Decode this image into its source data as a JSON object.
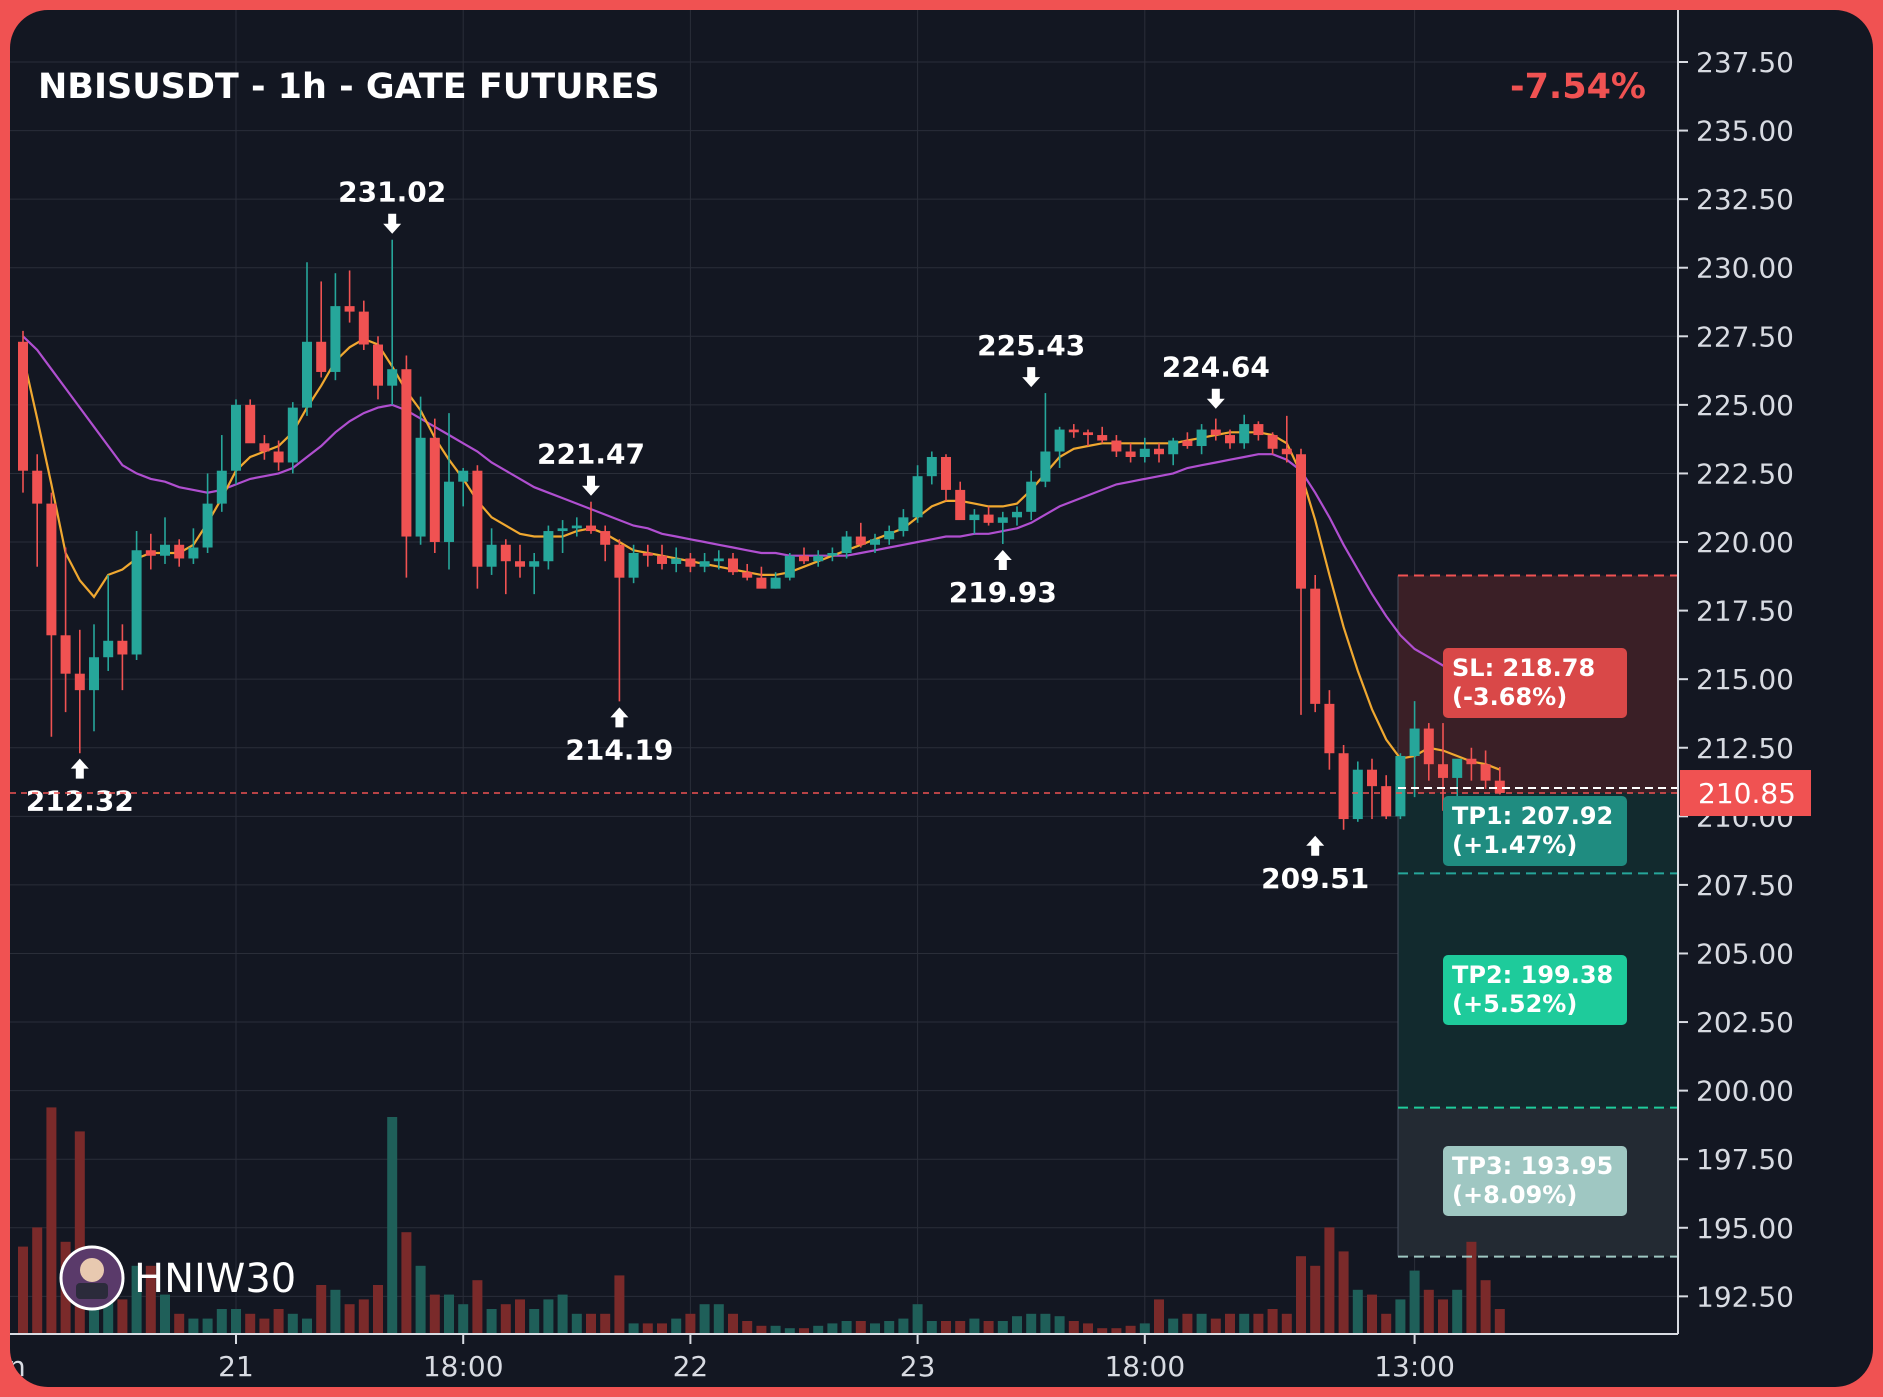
{
  "chart_data": {
    "type": "candlestick",
    "title": "NBISUSDT - 1h - GATE FUTURES",
    "change_pct": "-7.54%",
    "watermark": "HNIW30",
    "ylim": [
      191.5,
      238.5
    ],
    "y_ticks": [
      "237.50",
      "235.00",
      "232.50",
      "230.00",
      "227.50",
      "225.00",
      "222.50",
      "220.00",
      "217.50",
      "215.00",
      "212.50",
      "210.00",
      "207.50",
      "205.00",
      "202.50",
      "200.00",
      "197.50",
      "195.00",
      "192.50"
    ],
    "x_labels": [
      {
        "index": 15,
        "label": "21"
      },
      {
        "index": 31,
        "label": "18:00"
      },
      {
        "index": 47,
        "label": "22"
      },
      {
        "index": 63,
        "label": "23"
      },
      {
        "index": 79,
        "label": "18:00"
      },
      {
        "index": 98,
        "label": "13:00"
      }
    ],
    "first_x_label": "n",
    "current_price": 210.85,
    "current_price_label": "210.85",
    "candles": [
      [
        227.3,
        227.7,
        221.8,
        222.6
      ],
      [
        222.6,
        223.2,
        219.1,
        221.4
      ],
      [
        221.4,
        221.8,
        212.9,
        216.6
      ],
      [
        216.6,
        219.8,
        213.8,
        215.2
      ],
      [
        215.2,
        216.8,
        212.3,
        214.6
      ],
      [
        214.6,
        217.0,
        213.1,
        215.8
      ],
      [
        215.8,
        218.8,
        215.3,
        216.4
      ],
      [
        216.4,
        217.0,
        214.6,
        215.9
      ],
      [
        215.9,
        220.4,
        215.7,
        219.7
      ],
      [
        219.7,
        220.3,
        219.0,
        219.5
      ],
      [
        219.5,
        220.9,
        219.2,
        219.9
      ],
      [
        219.9,
        220.1,
        219.1,
        219.4
      ],
      [
        219.4,
        220.5,
        219.2,
        219.8
      ],
      [
        219.8,
        222.5,
        219.6,
        221.4
      ],
      [
        221.4,
        223.9,
        221.1,
        222.6
      ],
      [
        222.6,
        225.2,
        222.1,
        225.0
      ],
      [
        225.0,
        225.2,
        223.7,
        223.6
      ],
      [
        223.6,
        223.9,
        223.0,
        223.3
      ],
      [
        223.3,
        223.7,
        222.6,
        222.9
      ],
      [
        222.9,
        225.1,
        222.5,
        224.9
      ],
      [
        224.9,
        230.2,
        224.6,
        227.3
      ],
      [
        227.3,
        229.5,
        226.0,
        226.2
      ],
      [
        226.2,
        229.8,
        225.9,
        228.6
      ],
      [
        228.6,
        229.9,
        228.0,
        228.4
      ],
      [
        228.4,
        228.8,
        227.0,
        227.2
      ],
      [
        227.2,
        227.5,
        225.2,
        225.7
      ],
      [
        225.7,
        231.02,
        225.0,
        226.3
      ],
      [
        226.3,
        226.8,
        218.7,
        220.2
      ],
      [
        220.2,
        225.3,
        219.9,
        223.8
      ],
      [
        223.8,
        224.5,
        219.6,
        220.0
      ],
      [
        220.0,
        224.7,
        219.0,
        222.2
      ],
      [
        222.2,
        222.7,
        221.3,
        222.6
      ],
      [
        222.6,
        222.8,
        218.3,
        219.1
      ],
      [
        219.1,
        220.5,
        218.8,
        219.9
      ],
      [
        219.9,
        220.1,
        218.1,
        219.3
      ],
      [
        219.3,
        219.9,
        218.7,
        219.1
      ],
      [
        219.1,
        219.6,
        218.1,
        219.3
      ],
      [
        219.3,
        220.6,
        219.0,
        220.4
      ],
      [
        220.4,
        220.8,
        219.6,
        220.5
      ],
      [
        220.5,
        220.9,
        220.2,
        220.6
      ],
      [
        220.6,
        221.47,
        220.3,
        220.4
      ],
      [
        220.4,
        220.6,
        219.3,
        219.9
      ],
      [
        219.9,
        220.1,
        214.19,
        218.7
      ],
      [
        218.7,
        219.9,
        218.5,
        219.6
      ],
      [
        219.6,
        219.9,
        219.1,
        219.5
      ],
      [
        219.5,
        219.9,
        219.0,
        219.2
      ],
      [
        219.2,
        219.8,
        218.9,
        219.4
      ],
      [
        219.4,
        219.6,
        218.9,
        219.1
      ],
      [
        219.1,
        219.6,
        218.9,
        219.3
      ],
      [
        219.3,
        219.7,
        219.0,
        219.4
      ],
      [
        219.4,
        219.6,
        218.8,
        218.9
      ],
      [
        218.9,
        219.2,
        218.6,
        218.7
      ],
      [
        218.7,
        219.1,
        218.4,
        218.3
      ],
      [
        218.3,
        218.9,
        218.3,
        218.7
      ],
      [
        218.7,
        219.6,
        218.6,
        219.5
      ],
      [
        219.5,
        219.8,
        219.2,
        219.3
      ],
      [
        219.3,
        219.7,
        219.1,
        219.5
      ],
      [
        219.5,
        219.8,
        219.3,
        219.6
      ],
      [
        219.6,
        220.4,
        219.4,
        220.2
      ],
      [
        220.2,
        220.7,
        219.8,
        219.9
      ],
      [
        219.9,
        220.3,
        219.6,
        220.1
      ],
      [
        220.1,
        220.6,
        219.9,
        220.4
      ],
      [
        220.4,
        221.2,
        220.2,
        220.9
      ],
      [
        220.9,
        222.8,
        220.7,
        222.4
      ],
      [
        222.4,
        223.3,
        222.1,
        223.1
      ],
      [
        223.1,
        223.2,
        221.5,
        221.9
      ],
      [
        221.9,
        222.2,
        220.9,
        220.8
      ],
      [
        220.8,
        221.2,
        220.3,
        221.0
      ],
      [
        221.0,
        221.3,
        220.6,
        220.7
      ],
      [
        220.7,
        221.1,
        219.93,
        220.9
      ],
      [
        220.9,
        221.3,
        220.6,
        221.1
      ],
      [
        221.1,
        222.6,
        220.8,
        222.2
      ],
      [
        222.2,
        225.43,
        222.0,
        223.3
      ],
      [
        223.3,
        224.2,
        222.7,
        224.1
      ],
      [
        224.1,
        224.3,
        223.8,
        224.0
      ],
      [
        224.0,
        224.1,
        223.5,
        223.9
      ],
      [
        223.9,
        224.2,
        223.6,
        223.7
      ],
      [
        223.7,
        223.9,
        223.1,
        223.3
      ],
      [
        223.3,
        223.6,
        222.9,
        223.1
      ],
      [
        223.1,
        223.8,
        222.9,
        223.4
      ],
      [
        223.4,
        223.6,
        222.9,
        223.2
      ],
      [
        223.2,
        223.8,
        222.8,
        223.7
      ],
      [
        223.7,
        224.0,
        223.4,
        223.5
      ],
      [
        223.5,
        224.3,
        223.2,
        224.1
      ],
      [
        224.1,
        224.5,
        223.7,
        223.9
      ],
      [
        223.9,
        224.1,
        223.4,
        223.6
      ],
      [
        223.6,
        224.64,
        223.4,
        224.3
      ],
      [
        224.3,
        224.4,
        223.7,
        223.9
      ],
      [
        223.9,
        224.0,
        223.2,
        223.4
      ],
      [
        223.4,
        224.6,
        222.9,
        223.2
      ],
      [
        223.2,
        223.4,
        213.7,
        218.3
      ],
      [
        218.3,
        218.8,
        213.8,
        214.1
      ],
      [
        214.1,
        214.6,
        211.7,
        212.3
      ],
      [
        212.3,
        212.6,
        209.51,
        209.9
      ],
      [
        209.9,
        212.0,
        209.8,
        211.7
      ],
      [
        211.7,
        212.1,
        209.9,
        211.1
      ],
      [
        211.1,
        211.5,
        209.9,
        210.0
      ],
      [
        210.0,
        212.3,
        209.9,
        212.2
      ],
      [
        212.2,
        214.2,
        210.7,
        213.2
      ],
      [
        213.2,
        213.4,
        211.3,
        211.9
      ],
      [
        211.9,
        213.4,
        210.2,
        211.4
      ],
      [
        211.4,
        212.0,
        209.9,
        212.1
      ],
      [
        212.1,
        212.5,
        211.3,
        211.9
      ],
      [
        211.9,
        212.4,
        211.0,
        211.3
      ],
      [
        211.3,
        211.8,
        210.8,
        210.85
      ]
    ],
    "volume": [
      0.36,
      0.44,
      0.94,
      0.38,
      0.84,
      0.32,
      0.2,
      0.14,
      0.28,
      0.28,
      0.16,
      0.08,
      0.06,
      0.06,
      0.1,
      0.1,
      0.08,
      0.06,
      0.1,
      0.08,
      0.06,
      0.2,
      0.18,
      0.12,
      0.14,
      0.2,
      0.9,
      0.42,
      0.28,
      0.16,
      0.16,
      0.12,
      0.22,
      0.1,
      0.12,
      0.14,
      0.1,
      0.14,
      0.16,
      0.08,
      0.08,
      0.08,
      0.24,
      0.04,
      0.04,
      0.04,
      0.06,
      0.08,
      0.12,
      0.12,
      0.08,
      0.05,
      0.03,
      0.03,
      0.02,
      0.02,
      0.03,
      0.04,
      0.05,
      0.05,
      0.04,
      0.05,
      0.06,
      0.12,
      0.05,
      0.05,
      0.05,
      0.06,
      0.05,
      0.05,
      0.07,
      0.08,
      0.08,
      0.07,
      0.05,
      0.04,
      0.02,
      0.02,
      0.03,
      0.04,
      0.14,
      0.06,
      0.08,
      0.08,
      0.06,
      0.08,
      0.08,
      0.08,
      0.1,
      0.08,
      0.32,
      0.28,
      0.44,
      0.34,
      0.18,
      0.16,
      0.08,
      0.14,
      0.26,
      0.18,
      0.14,
      0.18,
      0.38,
      0.22,
      0.1
    ],
    "ma_fast": [
      226.8,
      224.5,
      222.1,
      219.6,
      218.6,
      218.0,
      218.8,
      219.0,
      219.4,
      219.6,
      219.6,
      219.6,
      219.9,
      220.7,
      221.6,
      222.6,
      223.1,
      223.3,
      223.5,
      224.0,
      224.9,
      225.7,
      226.6,
      227.1,
      227.4,
      227.2,
      226.4,
      225.5,
      224.8,
      223.8,
      223.0,
      222.3,
      221.5,
      220.9,
      220.6,
      220.3,
      220.2,
      220.2,
      220.2,
      220.4,
      220.5,
      220.3,
      220.0,
      219.7,
      219.6,
      219.5,
      219.4,
      219.3,
      219.2,
      219.1,
      219.0,
      218.9,
      218.8,
      218.8,
      218.9,
      219.1,
      219.3,
      219.5,
      219.7,
      219.9,
      220.1,
      220.3,
      220.5,
      220.9,
      221.3,
      221.5,
      221.5,
      221.4,
      221.3,
      221.3,
      221.4,
      221.9,
      222.5,
      223.1,
      223.4,
      223.5,
      223.6,
      223.6,
      223.6,
      223.6,
      223.6,
      223.6,
      223.7,
      223.8,
      223.9,
      224.0,
      224.0,
      224.0,
      223.9,
      223.6,
      222.5,
      220.8,
      218.8,
      216.9,
      215.3,
      213.9,
      212.8,
      212.1,
      212.2,
      212.5,
      212.4,
      212.2,
      212.0,
      211.9,
      211.7
    ],
    "ma_slow": [
      227.5,
      227.0,
      226.3,
      225.6,
      224.9,
      224.2,
      223.5,
      222.8,
      222.5,
      222.3,
      222.2,
      222.0,
      221.9,
      221.8,
      221.9,
      222.1,
      222.3,
      222.4,
      222.5,
      222.7,
      223.1,
      223.5,
      224.0,
      224.4,
      224.7,
      224.9,
      225.0,
      224.8,
      224.5,
      224.2,
      223.9,
      223.6,
      223.3,
      222.9,
      222.6,
      222.3,
      222.0,
      221.8,
      221.6,
      221.4,
      221.2,
      221.0,
      220.8,
      220.6,
      220.5,
      220.3,
      220.2,
      220.1,
      220.0,
      219.9,
      219.8,
      219.7,
      219.6,
      219.6,
      219.5,
      219.5,
      219.5,
      219.5,
      219.5,
      219.6,
      219.7,
      219.8,
      219.9,
      220.0,
      220.1,
      220.2,
      220.2,
      220.3,
      220.3,
      220.4,
      220.5,
      220.7,
      221.0,
      221.3,
      221.5,
      221.7,
      221.9,
      222.1,
      222.2,
      222.3,
      222.4,
      222.5,
      222.7,
      222.8,
      222.9,
      223.0,
      223.1,
      223.2,
      223.2,
      223.0,
      222.6,
      221.8,
      220.9,
      219.9,
      219.0,
      218.1,
      217.3,
      216.6,
      216.1,
      215.8,
      215.5,
      215.2,
      214.9,
      214.6,
      214.3
    ],
    "annotations": [
      {
        "index": 4,
        "price": 212.32,
        "label": "212.32",
        "dir": "up"
      },
      {
        "index": 26,
        "price": 231.02,
        "label": "231.02",
        "dir": "down"
      },
      {
        "index": 40,
        "price": 221.47,
        "label": "221.47",
        "dir": "down"
      },
      {
        "index": 42,
        "price": 214.19,
        "label": "214.19",
        "dir": "up"
      },
      {
        "index": 69,
        "price": 219.93,
        "label": "219.93",
        "dir": "up"
      },
      {
        "index": 71,
        "price": 225.43,
        "label": "225.43",
        "dir": "down"
      },
      {
        "index": 84,
        "price": 224.64,
        "label": "224.64",
        "dir": "down"
      },
      {
        "index": 91,
        "price": 209.51,
        "label": "209.51",
        "dir": "up"
      }
    ],
    "levels": {
      "sl": {
        "price": 218.78,
        "label": "SL: 218.78",
        "pct": "(-3.68%)"
      },
      "tp1": {
        "price": 207.92,
        "label": "TP1: 207.92",
        "pct": "(+1.47%)"
      },
      "tp2": {
        "price": 199.38,
        "label": "TP2: 199.38",
        "pct": "(+5.52%)"
      },
      "tp3": {
        "price": 193.95,
        "label": "TP3: 193.95",
        "pct": "(+8.09%)"
      }
    },
    "colors": {
      "bg": "#131722",
      "up": "#26a69a",
      "down": "#f05252",
      "up_vol": "#1f5f59",
      "down_vol": "#7a2a2a",
      "ma_fast": "#f0a830",
      "ma_slow": "#b04fd0",
      "grid": "#2a2e39",
      "sl_zone": "#3a1f26",
      "tp_zone": "#122a2e",
      "tp3_zone": "#232a33",
      "sl_box": "#d94848",
      "tp1_box": "#1f8c80",
      "tp2_box": "#1ecb9b",
      "tp3_box": "#9fc7c2"
    }
  }
}
